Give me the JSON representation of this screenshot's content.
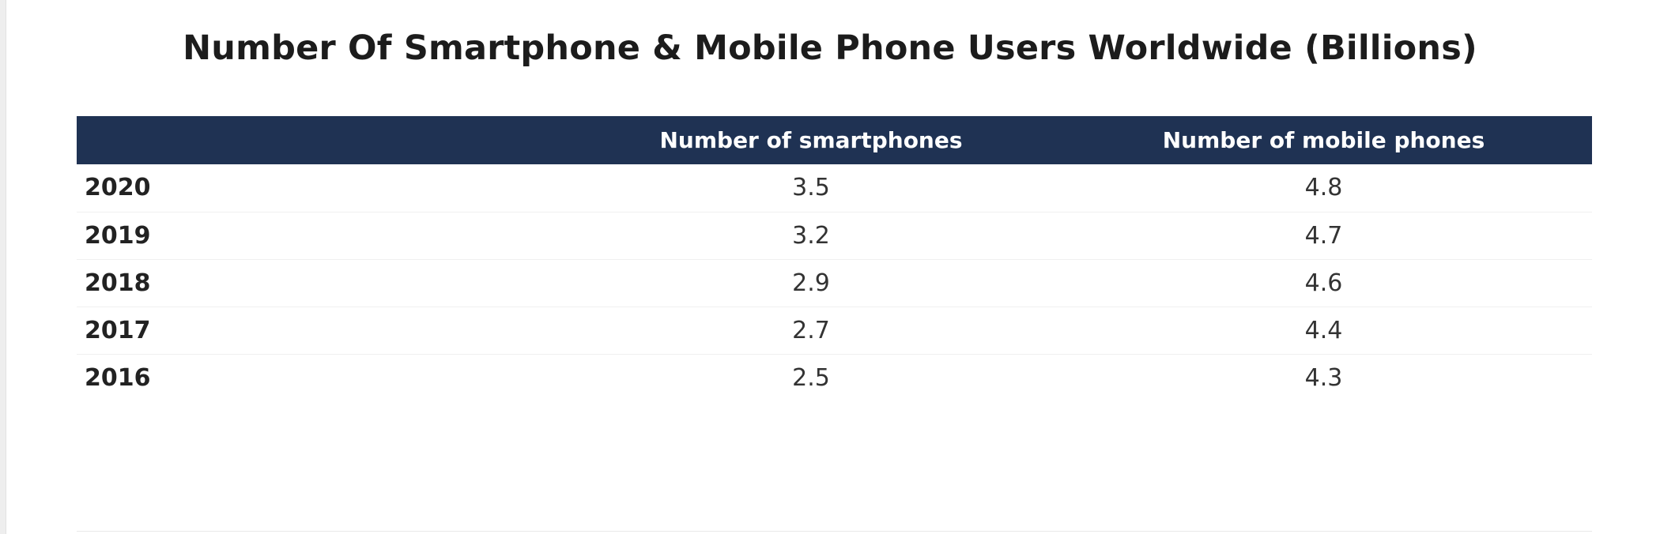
{
  "chart_data": {
    "type": "table",
    "title": "Number Of Smartphone & Mobile Phone Users Worldwide (Billions)",
    "columns": [
      "",
      "Number of smartphones",
      "Number of mobile phones"
    ],
    "rows": [
      {
        "year": "2020",
        "smartphones": "3.5",
        "mobile_phones": "4.8"
      },
      {
        "year": "2019",
        "smartphones": "3.2",
        "mobile_phones": "4.7"
      },
      {
        "year": "2018",
        "smartphones": "2.9",
        "mobile_phones": "4.6"
      },
      {
        "year": "2017",
        "smartphones": "2.7",
        "mobile_phones": "4.4"
      },
      {
        "year": "2016",
        "smartphones": "2.5",
        "mobile_phones": "4.3"
      }
    ],
    "colors": {
      "header_background": "#1f3253",
      "header_text": "#ffffff"
    }
  }
}
